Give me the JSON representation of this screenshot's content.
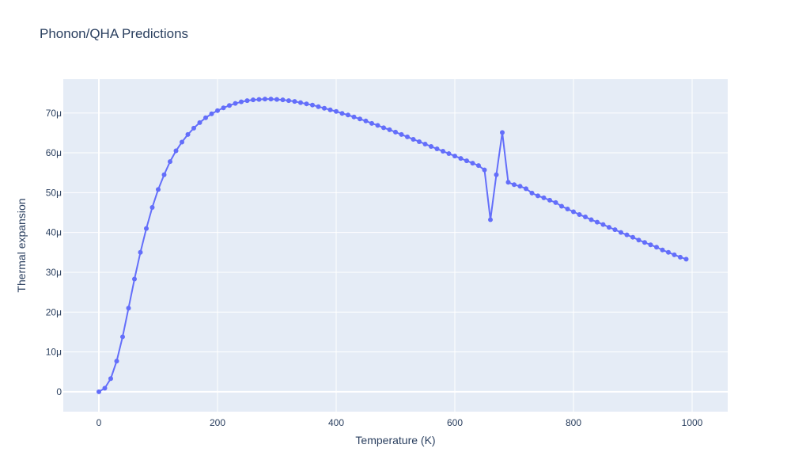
{
  "chart_data": {
    "type": "line",
    "title": "Phonon/QHA Predictions",
    "xlabel": "Temperature (K)",
    "ylabel": "Thermal expansion",
    "xlim": [
      -60,
      1060
    ],
    "ylim": [
      -5,
      78.5
    ],
    "x_ticks": [
      0,
      200,
      400,
      600,
      800,
      1000
    ],
    "x_tick_labels": [
      "0",
      "200",
      "400",
      "600",
      "800",
      "1000"
    ],
    "y_ticks": [
      0,
      10,
      20,
      30,
      40,
      50,
      60,
      70
    ],
    "y_tick_labels": [
      "0",
      "10μ",
      "20μ",
      "30μ",
      "40μ",
      "50μ",
      "60μ",
      "70μ"
    ],
    "grid": true,
    "legend": "none",
    "colors": {
      "line": "#636efa",
      "plot_bg": "#e5ecf6",
      "grid": "#ffffff",
      "text": "#2a3f5f"
    },
    "series": [
      {
        "mode": "lines+markers",
        "x": [
          0,
          10,
          20,
          30,
          40,
          50,
          60,
          70,
          80,
          90,
          100,
          110,
          120,
          130,
          140,
          150,
          160,
          170,
          180,
          190,
          200,
          210,
          220,
          230,
          240,
          250,
          260,
          270,
          280,
          290,
          300,
          310,
          320,
          330,
          340,
          350,
          360,
          370,
          380,
          390,
          400,
          410,
          420,
          430,
          440,
          450,
          460,
          470,
          480,
          490,
          500,
          510,
          520,
          530,
          540,
          550,
          560,
          570,
          580,
          590,
          600,
          610,
          620,
          630,
          640,
          650,
          660,
          670,
          680,
          690,
          700,
          710,
          720,
          730,
          740,
          750,
          760,
          770,
          780,
          790,
          800,
          810,
          820,
          830,
          840,
          850,
          860,
          870,
          880,
          890,
          900,
          910,
          920,
          930,
          940,
          950,
          960,
          970,
          980,
          990
        ],
        "y": [
          0,
          0.9,
          3.3,
          7.7,
          13.8,
          21,
          28.3,
          35,
          41,
          46.3,
          50.8,
          54.5,
          57.8,
          60.5,
          62.7,
          64.6,
          66.2,
          67.6,
          68.8,
          69.8,
          70.6,
          71.3,
          71.9,
          72.4,
          72.8,
          73.1,
          73.3,
          73.4,
          73.5,
          73.5,
          73.4,
          73.3,
          73.1,
          72.9,
          72.6,
          72.3,
          72,
          71.6,
          71.2,
          70.8,
          70.4,
          69.9,
          69.5,
          69,
          68.5,
          68,
          67.4,
          66.9,
          66.3,
          65.8,
          65.2,
          64.6,
          64,
          63.4,
          62.8,
          62.2,
          61.6,
          61,
          60.4,
          59.8,
          59.2,
          58.6,
          58,
          57.4,
          56.8,
          55.7,
          43.2,
          54.5,
          65.1,
          52.6,
          52,
          51.6,
          51,
          49.9,
          49.2,
          48.7,
          48.1,
          47.5,
          46.6,
          45.9,
          45.2,
          44.5,
          43.9,
          43.2,
          42.6,
          42,
          41.3,
          40.7,
          40,
          39.4,
          38.8,
          38.1,
          37.5,
          36.9,
          36.3,
          35.6,
          35,
          34.4,
          33.8,
          33.3
        ]
      }
    ]
  }
}
